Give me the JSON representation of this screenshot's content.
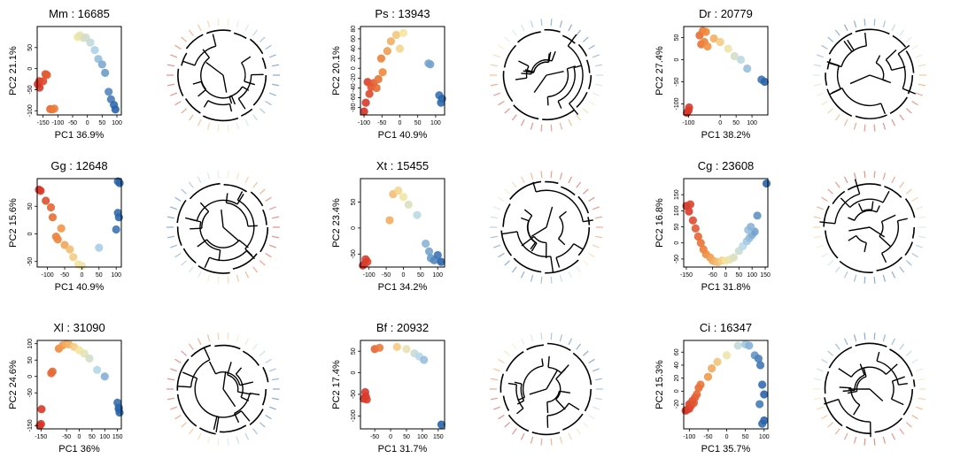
{
  "chart_data": [
    {
      "type": "scatter",
      "title": "Mm : 16685",
      "xlabel": "PC1 36.9%",
      "ylabel": "PC2 21.1%",
      "xlim": [
        -170,
        115
      ],
      "ylim": [
        -110,
        100
      ],
      "xticks": [
        "-150",
        "-100",
        "-50",
        "0",
        "50",
        "100"
      ],
      "xtickvals": [
        -150,
        -100,
        -50,
        0,
        50,
        100
      ],
      "yticks": [
        "-100",
        "-50",
        "0",
        "50"
      ],
      "ytickvals": [
        -100,
        -50,
        0,
        50
      ],
      "points": [
        {
          "x": -168,
          "y": -37
        },
        {
          "x": -162,
          "y": -45
        },
        {
          "x": -163,
          "y": -30
        },
        {
          "x": -150,
          "y": -30
        },
        {
          "x": -142,
          "y": -13
        },
        {
          "x": -137,
          "y": -15
        },
        {
          "x": -126,
          "y": -96
        },
        {
          "x": -119,
          "y": -97
        },
        {
          "x": -112,
          "y": -95
        },
        {
          "x": -33,
          "y": 75
        },
        {
          "x": -25,
          "y": 79
        },
        {
          "x": -13,
          "y": 73
        },
        {
          "x": -5,
          "y": 74
        },
        {
          "x": 10,
          "y": 62
        },
        {
          "x": 25,
          "y": 44
        },
        {
          "x": 37,
          "y": 23
        },
        {
          "x": 50,
          "y": 10
        },
        {
          "x": 60,
          "y": -10
        },
        {
          "x": 72,
          "y": -55
        },
        {
          "x": 80,
          "y": -73
        },
        {
          "x": 90,
          "y": -86
        },
        {
          "x": 95,
          "y": -97
        }
      ]
    },
    {
      "type": "scatter",
      "title": "Ps : 13943",
      "xlabel": "PC1 40.9%",
      "ylabel": "PC2 20.1%",
      "xlim": [
        -110,
        125
      ],
      "ylim": [
        -95,
        85
      ],
      "xticks": [
        "-100",
        "-50",
        "0",
        "50",
        "100"
      ],
      "xtickvals": [
        -100,
        -50,
        0,
        50,
        100
      ],
      "yticks": [
        "-80",
        "-60",
        "-40",
        "-20",
        "0",
        "20",
        "40",
        "60",
        "80"
      ],
      "ytickvals": [
        -80,
        -60,
        -40,
        -20,
        0,
        20,
        40,
        60,
        80
      ],
      "points": [
        {
          "x": -100,
          "y": -88
        },
        {
          "x": -95,
          "y": -70
        },
        {
          "x": -90,
          "y": -28
        },
        {
          "x": -85,
          "y": -52
        },
        {
          "x": -80,
          "y": -38
        },
        {
          "x": -73,
          "y": -30
        },
        {
          "x": -65,
          "y": -40
        },
        {
          "x": -60,
          "y": -22
        },
        {
          "x": -48,
          "y": -8
        },
        {
          "x": -52,
          "y": 20
        },
        {
          "x": -35,
          "y": 35
        },
        {
          "x": -25,
          "y": 55
        },
        {
          "x": -10,
          "y": 68
        },
        {
          "x": 10,
          "y": 72
        },
        {
          "x": 0,
          "y": 40
        },
        {
          "x": 80,
          "y": 10
        },
        {
          "x": 85,
          "y": 8
        },
        {
          "x": 110,
          "y": -55
        },
        {
          "x": 118,
          "y": -62
        },
        {
          "x": 115,
          "y": -70
        }
      ]
    },
    {
      "type": "scatter",
      "title": "Dr : 20779",
      "xlabel": "PC1 38.2%",
      "ylabel": "PC2 27.4%",
      "xlim": [
        -115,
        150
      ],
      "ylim": [
        -125,
        75
      ],
      "xticks": [
        "-100",
        "0",
        "50",
        "100"
      ],
      "xtickvals": [
        -100,
        0,
        50,
        100
      ],
      "yticks": [
        "-100",
        "-50",
        "0",
        "50"
      ],
      "ytickvals": [
        -100,
        -50,
        0,
        50
      ],
      "points": [
        {
          "x": -105,
          "y": -120
        },
        {
          "x": -100,
          "y": -115
        },
        {
          "x": -98,
          "y": -108
        },
        {
          "x": -65,
          "y": 55
        },
        {
          "x": -55,
          "y": 65
        },
        {
          "x": -45,
          "y": 63
        },
        {
          "x": -60,
          "y": 35
        },
        {
          "x": -50,
          "y": 40
        },
        {
          "x": -40,
          "y": 30
        },
        {
          "x": -20,
          "y": 48
        },
        {
          "x": 0,
          "y": 40
        },
        {
          "x": 25,
          "y": 25
        },
        {
          "x": 45,
          "y": 8
        },
        {
          "x": 65,
          "y": 0
        },
        {
          "x": 85,
          "y": -20
        },
        {
          "x": 130,
          "y": -45
        },
        {
          "x": 140,
          "y": -50
        }
      ]
    },
    {
      "type": "scatter",
      "title": "Gg : 12648",
      "xlabel": "PC1 40.9%",
      "ylabel": "PC2 15.6%",
      "xlim": [
        -130,
        115
      ],
      "ylim": [
        -60,
        100
      ],
      "xticks": [
        "-100",
        "-50",
        "0",
        "50",
        "100"
      ],
      "xtickvals": [
        -100,
        -50,
        0,
        50,
        100
      ],
      "yticks": [
        "-50",
        "0",
        "50"
      ],
      "ytickvals": [
        -50,
        0,
        50
      ],
      "points": [
        {
          "x": -125,
          "y": 80
        },
        {
          "x": -120,
          "y": 78
        },
        {
          "x": -105,
          "y": 60
        },
        {
          "x": -90,
          "y": 48
        },
        {
          "x": -85,
          "y": 30
        },
        {
          "x": -75,
          "y": -5
        },
        {
          "x": -70,
          "y": -10
        },
        {
          "x": -60,
          "y": 10
        },
        {
          "x": -50,
          "y": -20
        },
        {
          "x": -35,
          "y": -28
        },
        {
          "x": -25,
          "y": -42
        },
        {
          "x": -10,
          "y": -55
        },
        {
          "x": 0,
          "y": -58
        },
        {
          "x": 50,
          "y": -25
        },
        {
          "x": 100,
          "y": 8
        },
        {
          "x": 105,
          "y": 38
        },
        {
          "x": 108,
          "y": 30
        },
        {
          "x": 105,
          "y": 95
        },
        {
          "x": 110,
          "y": 92
        }
      ]
    },
    {
      "type": "scatter",
      "title": "Xt : 15455",
      "xlabel": "PC1 34.2%",
      "ylabel": "PC2 23.4%",
      "xlim": [
        -125,
        120
      ],
      "ylim": [
        -75,
        95
      ],
      "xticks": [
        "-100",
        "-50",
        "0",
        "50",
        "100"
      ],
      "xtickvals": [
        -100,
        -50,
        0,
        50,
        100
      ],
      "yticks": [
        "-50",
        "0",
        "50"
      ],
      "ytickvals": [
        -50,
        0,
        50
      ],
      "points": [
        {
          "x": -118,
          "y": -72
        },
        {
          "x": -112,
          "y": -68
        },
        {
          "x": -105,
          "y": -65
        },
        {
          "x": -110,
          "y": -60
        },
        {
          "x": -40,
          "y": 15
        },
        {
          "x": -30,
          "y": 65
        },
        {
          "x": -15,
          "y": 72
        },
        {
          "x": 0,
          "y": 60
        },
        {
          "x": 15,
          "y": 45
        },
        {
          "x": 40,
          "y": 25
        },
        {
          "x": 65,
          "y": -30
        },
        {
          "x": 75,
          "y": -45
        },
        {
          "x": 80,
          "y": -58
        },
        {
          "x": 90,
          "y": -62
        },
        {
          "x": 100,
          "y": -52
        },
        {
          "x": 110,
          "y": -65
        }
      ]
    },
    {
      "type": "scatter",
      "title": "Cg : 23608",
      "xlabel": "PC1 31.8%",
      "ylabel": "PC2 16.8%",
      "xlim": [
        -160,
        160
      ],
      "ylim": [
        -75,
        200
      ],
      "xticks": [
        "-150",
        "-50",
        "0",
        "50",
        "100",
        "150"
      ],
      "xtickvals": [
        -150,
        -50,
        0,
        50,
        100,
        150
      ],
      "yticks": [
        "-50",
        "0",
        "50",
        "100",
        "150"
      ],
      "ytickvals": [
        -50,
        0,
        50,
        100,
        150
      ],
      "points": [
        {
          "x": -150,
          "y": 115
        },
        {
          "x": -140,
          "y": 98
        },
        {
          "x": -135,
          "y": 120
        },
        {
          "x": -125,
          "y": 70
        },
        {
          "x": -115,
          "y": 45
        },
        {
          "x": -105,
          "y": 20
        },
        {
          "x": -95,
          "y": 0
        },
        {
          "x": -85,
          "y": -20
        },
        {
          "x": -75,
          "y": -35
        },
        {
          "x": -60,
          "y": -45
        },
        {
          "x": -50,
          "y": -55
        },
        {
          "x": -40,
          "y": -58
        },
        {
          "x": -30,
          "y": -60
        },
        {
          "x": -15,
          "y": -55
        },
        {
          "x": 0,
          "y": -55
        },
        {
          "x": 15,
          "y": -52
        },
        {
          "x": 30,
          "y": -45
        },
        {
          "x": 50,
          "y": -25
        },
        {
          "x": 65,
          "y": -10
        },
        {
          "x": 80,
          "y": 5
        },
        {
          "x": 90,
          "y": 15
        },
        {
          "x": 100,
          "y": 25
        },
        {
          "x": 110,
          "y": 35
        },
        {
          "x": 85,
          "y": 40
        },
        {
          "x": 95,
          "y": 50
        },
        {
          "x": 120,
          "y": 85
        },
        {
          "x": 155,
          "y": 185
        }
      ]
    },
    {
      "type": "scatter",
      "title": "Xl : 31090",
      "xlabel": "PC1 36%",
      "ylabel": "PC2 24.6%",
      "xlim": [
        -165,
        165
      ],
      "ylim": [
        -160,
        110
      ],
      "xticks": [
        "-150",
        "-50",
        "0",
        "50",
        "100",
        "150"
      ],
      "xtickvals": [
        -150,
        -50,
        0,
        50,
        100,
        150
      ],
      "yticks": [
        "-150",
        "-50",
        "0",
        "50",
        "100"
      ],
      "ytickvals": [
        -150,
        -50,
        0,
        50,
        100
      ],
      "points": [
        {
          "x": -155,
          "y": -150
        },
        {
          "x": -150,
          "y": -145
        },
        {
          "x": -148,
          "y": -100
        },
        {
          "x": -110,
          "y": 10
        },
        {
          "x": -105,
          "y": 15
        },
        {
          "x": -80,
          "y": 85
        },
        {
          "x": -65,
          "y": 95
        },
        {
          "x": -50,
          "y": 100
        },
        {
          "x": -40,
          "y": 98
        },
        {
          "x": -20,
          "y": 90
        },
        {
          "x": 0,
          "y": 80
        },
        {
          "x": 20,
          "y": 70
        },
        {
          "x": 40,
          "y": 55
        },
        {
          "x": 70,
          "y": 20
        },
        {
          "x": 100,
          "y": 0
        },
        {
          "x": 150,
          "y": -80
        },
        {
          "x": 155,
          "y": -95
        },
        {
          "x": 155,
          "y": -100
        },
        {
          "x": 158,
          "y": -110
        }
      ]
    },
    {
      "type": "scatter",
      "title": "Bf : 20932",
      "xlabel": "PC1 31.7%",
      "ylabel": "PC2 17.4%",
      "xlim": [
        -95,
        170
      ],
      "ylim": [
        -130,
        75
      ],
      "xticks": [
        "-50",
        "0",
        "50",
        "100",
        "150"
      ],
      "xtickvals": [
        -50,
        0,
        50,
        100,
        150
      ],
      "yticks": [
        "-100",
        "-50",
        "0",
        "50"
      ],
      "ytickvals": [
        -100,
        -50,
        0,
        50
      ],
      "points": [
        {
          "x": -85,
          "y": -60
        },
        {
          "x": -80,
          "y": -45
        },
        {
          "x": -78,
          "y": -55
        },
        {
          "x": -75,
          "y": -62
        },
        {
          "x": -50,
          "y": 55
        },
        {
          "x": -35,
          "y": 58
        },
        {
          "x": 20,
          "y": 60
        },
        {
          "x": 50,
          "y": 55
        },
        {
          "x": 75,
          "y": 45
        },
        {
          "x": 90,
          "y": 38
        },
        {
          "x": 105,
          "y": 30
        },
        {
          "x": 160,
          "y": -120
        }
      ]
    },
    {
      "type": "scatter",
      "title": "Ci : 16347",
      "xlabel": "PC1 35.7%",
      "ylabel": "PC2 15.3%",
      "xlim": [
        -115,
        110
      ],
      "ylim": [
        -58,
        78
      ],
      "xticks": [
        "-100",
        "-50",
        "0",
        "50",
        "100"
      ],
      "xtickvals": [
        -100,
        -50,
        0,
        50,
        100
      ],
      "yticks": [
        "-20",
        "0",
        "20",
        "40",
        "60"
      ],
      "ytickvals": [
        -20,
        0,
        20,
        40,
        60
      ],
      "points": [
        {
          "x": -110,
          "y": -30
        },
        {
          "x": -105,
          "y": -28
        },
        {
          "x": -100,
          "y": -27
        },
        {
          "x": -100,
          "y": -20
        },
        {
          "x": -95,
          "y": -22
        },
        {
          "x": -92,
          "y": -15
        },
        {
          "x": -88,
          "y": -18
        },
        {
          "x": -85,
          "y": -10
        },
        {
          "x": -80,
          "y": -5
        },
        {
          "x": -75,
          "y": 5
        },
        {
          "x": -70,
          "y": 10
        },
        {
          "x": -50,
          "y": 22
        },
        {
          "x": -40,
          "y": 35
        },
        {
          "x": -25,
          "y": 45
        },
        {
          "x": 0,
          "y": 55
        },
        {
          "x": 30,
          "y": 70
        },
        {
          "x": 50,
          "y": 72
        },
        {
          "x": 60,
          "y": 70
        },
        {
          "x": 75,
          "y": 55
        },
        {
          "x": 85,
          "y": 50
        },
        {
          "x": 90,
          "y": 40
        },
        {
          "x": 95,
          "y": 10
        },
        {
          "x": 100,
          "y": -5
        },
        {
          "x": 88,
          "y": -20
        },
        {
          "x": 95,
          "y": -50
        },
        {
          "x": 100,
          "y": -45
        }
      ]
    }
  ]
}
